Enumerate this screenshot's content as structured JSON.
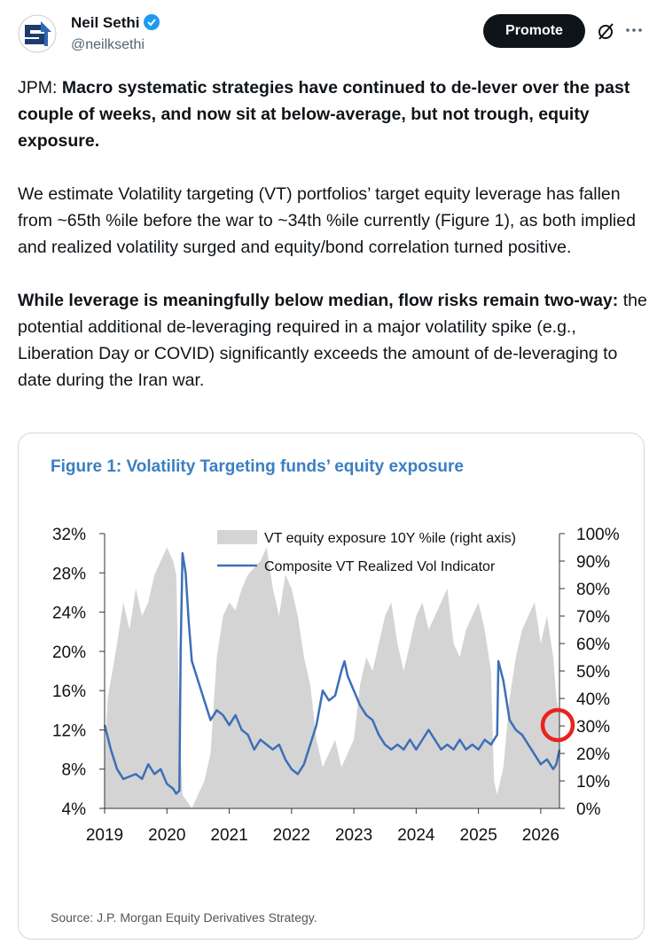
{
  "author": {
    "name": "Neil Sethi",
    "handle": "@neilksethi"
  },
  "actions": {
    "promote": "Promote"
  },
  "paragraphs": [
    {
      "lead": "JPM:",
      "bold": "Macro systematic strategies have continued to de-lever over the past couple of weeks, and now sit at below-average, but not trough, equity exposure."
    },
    {
      "normal": "We estimate Volatility targeting (VT) portfolios’ target equity leverage has fallen from ~65th %ile before the war to ~34th %ile currently (Figure 1), as both implied and realized volatility surged and equity/bond correlation turned positive."
    },
    {
      "bold": "While leverage is meaningfully below median, flow risks remain two-way:",
      "normal": "the potential additional de-leveraging required in a major volatility spike (e.g., Liberation Day or COVID) significantly exceeds the amount of de-leveraging to date during the Iran war."
    }
  ],
  "chart_data": {
    "type": "line",
    "title": "Figure 1: Volatility Targeting funds’ equity exposure",
    "source": "Source: J.P. Morgan Equity Derivatives Strategy.",
    "xlim": [
      2019,
      2026.3
    ],
    "xticks": [
      2019,
      2020,
      2021,
      2022,
      2023,
      2024,
      2025,
      2026
    ],
    "ylim": [
      4,
      32
    ],
    "yticks": [
      {
        "value": 4,
        "label": "4%"
      },
      {
        "value": 8,
        "label": "8%"
      },
      {
        "value": 12,
        "label": "12%"
      },
      {
        "value": 16,
        "label": "16%"
      },
      {
        "value": 20,
        "label": "20%"
      },
      {
        "value": 24,
        "label": "24%"
      },
      {
        "value": 28,
        "label": "28%"
      },
      {
        "value": 32,
        "label": "32%"
      }
    ],
    "y2lim": [
      0,
      100
    ],
    "y2ticks": [
      {
        "value": 0,
        "label": "0%"
      },
      {
        "value": 10,
        "label": "10%"
      },
      {
        "value": 20,
        "label": "20%"
      },
      {
        "value": 30,
        "label": "30%"
      },
      {
        "value": 40,
        "label": "40%"
      },
      {
        "value": 50,
        "label": "50%"
      },
      {
        "value": 60,
        "label": "60%"
      },
      {
        "value": 70,
        "label": "70%"
      },
      {
        "value": 80,
        "label": "80%"
      },
      {
        "value": 90,
        "label": "90%"
      },
      {
        "value": 100,
        "label": "100%"
      }
    ],
    "series": [
      {
        "name": "VT equity exposure 10Y %ile (right axis)",
        "type": "area",
        "axis": "y2",
        "color": "#d4d4d4",
        "x": [
          2019.0,
          2019.05,
          2019.2,
          2019.3,
          2019.4,
          2019.5,
          2019.6,
          2019.7,
          2019.8,
          2019.9,
          2020.0,
          2020.1,
          2020.15,
          2020.2,
          2020.25,
          2020.4,
          2020.6,
          2020.7,
          2020.8,
          2020.9,
          2021.0,
          2021.1,
          2021.2,
          2021.3,
          2021.5,
          2021.6,
          2021.7,
          2021.8,
          2021.9,
          2022.0,
          2022.1,
          2022.2,
          2022.3,
          2022.4,
          2022.5,
          2022.6,
          2022.7,
          2022.8,
          2022.9,
          2023.0,
          2023.1,
          2023.2,
          2023.3,
          2023.4,
          2023.5,
          2023.6,
          2023.7,
          2023.8,
          2023.9,
          2024.0,
          2024.1,
          2024.2,
          2024.3,
          2024.4,
          2024.5,
          2024.6,
          2024.7,
          2024.8,
          2024.9,
          2025.0,
          2025.1,
          2025.2,
          2025.25,
          2025.3,
          2025.4,
          2025.5,
          2025.6,
          2025.7,
          2025.8,
          2025.9,
          2026.0,
          2026.1,
          2026.2,
          2026.25,
          2026.3
        ],
        "values": [
          20,
          40,
          60,
          75,
          65,
          80,
          70,
          75,
          85,
          90,
          95,
          90,
          85,
          30,
          5,
          0,
          10,
          20,
          55,
          70,
          75,
          72,
          80,
          85,
          90,
          95,
          80,
          70,
          85,
          80,
          70,
          55,
          45,
          25,
          15,
          20,
          25,
          15,
          20,
          25,
          45,
          55,
          50,
          60,
          70,
          75,
          60,
          50,
          60,
          70,
          75,
          65,
          70,
          75,
          80,
          60,
          55,
          65,
          70,
          75,
          65,
          50,
          10,
          5,
          15,
          40,
          55,
          65,
          70,
          75,
          60,
          70,
          55,
          40,
          34
        ]
      },
      {
        "name": "Composite VT Realized Vol Indicator",
        "type": "line",
        "color": "#3d6fb6",
        "x": [
          2019.0,
          2019.1,
          2019.2,
          2019.3,
          2019.5,
          2019.6,
          2019.7,
          2019.8,
          2019.9,
          2020.0,
          2020.1,
          2020.15,
          2020.2,
          2020.22,
          2020.25,
          2020.3,
          2020.35,
          2020.4,
          2020.5,
          2020.6,
          2020.7,
          2020.8,
          2020.9,
          2021.0,
          2021.1,
          2021.2,
          2021.3,
          2021.4,
          2021.5,
          2021.6,
          2021.7,
          2021.8,
          2021.9,
          2022.0,
          2022.1,
          2022.2,
          2022.3,
          2022.4,
          2022.5,
          2022.55,
          2022.6,
          2022.7,
          2022.8,
          2022.85,
          2022.9,
          2023.0,
          2023.1,
          2023.2,
          2023.3,
          2023.4,
          2023.5,
          2023.6,
          2023.7,
          2023.8,
          2023.9,
          2024.0,
          2024.1,
          2024.2,
          2024.3,
          2024.4,
          2024.5,
          2024.6,
          2024.7,
          2024.8,
          2024.9,
          2025.0,
          2025.1,
          2025.2,
          2025.3,
          2025.32,
          2025.4,
          2025.5,
          2025.6,
          2025.7,
          2025.8,
          2025.9,
          2026.0,
          2026.1,
          2026.2,
          2026.25,
          2026.3
        ],
        "values": [
          12.5,
          10,
          8,
          7,
          7.5,
          7,
          8.5,
          7.5,
          8,
          6.5,
          6,
          5.5,
          5.8,
          20,
          30,
          28,
          23,
          19,
          17,
          15,
          13,
          14,
          13.5,
          12.5,
          13.5,
          12,
          11.5,
          10,
          11,
          10.5,
          10,
          10.5,
          9,
          8,
          7.5,
          8.5,
          10.5,
          12.5,
          16,
          15.5,
          15,
          15.5,
          18,
          19,
          17.5,
          16,
          14.5,
          13.5,
          13,
          11.5,
          10.5,
          10,
          10.5,
          10,
          11,
          10,
          11,
          12,
          11,
          10,
          10.5,
          10,
          11,
          10,
          10.5,
          10,
          11,
          10.5,
          11.5,
          19,
          17,
          13,
          12,
          11.5,
          10.5,
          9.5,
          8.5,
          9,
          8,
          8.5,
          10
        ]
      }
    ]
  }
}
